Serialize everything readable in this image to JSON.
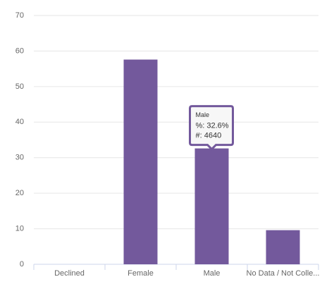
{
  "chart_data": {
    "type": "bar",
    "categories": [
      "Declined",
      "Female",
      "Male",
      "No Data / Not Colle..."
    ],
    "values": [
      0,
      57.6,
      32.6,
      9.6
    ],
    "color": "#73599c",
    "ylim": [
      0,
      70
    ],
    "yticks": [
      0,
      10,
      20,
      30,
      40,
      50,
      60,
      70
    ],
    "grid": true,
    "tooltip": {
      "category_index": 2,
      "title": "Male",
      "lines": [
        "%: 32.6%",
        "#: 4640"
      ]
    }
  }
}
